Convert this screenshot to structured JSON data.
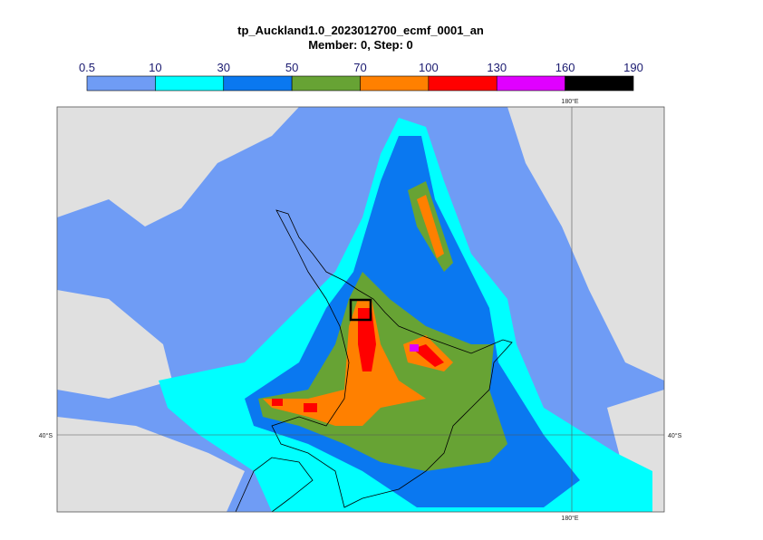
{
  "header": {
    "title": "tp_Auckland1.0_2023012700_ecmf_0001_an",
    "subtitle": "Member: 0, Step: 0"
  },
  "colorbar": {
    "ticks": [
      0.5,
      10,
      30,
      50,
      70,
      100,
      130,
      160,
      190
    ],
    "colors": [
      "#6f9cf5",
      "#00ffff",
      "#0a78f0",
      "#67a334",
      "#ff8000",
      "#ff0000",
      "#e000ff",
      "#000000"
    ]
  },
  "map": {
    "labels": [
      "180°E",
      "180°E",
      "40°S",
      "40°S"
    ]
  }
}
